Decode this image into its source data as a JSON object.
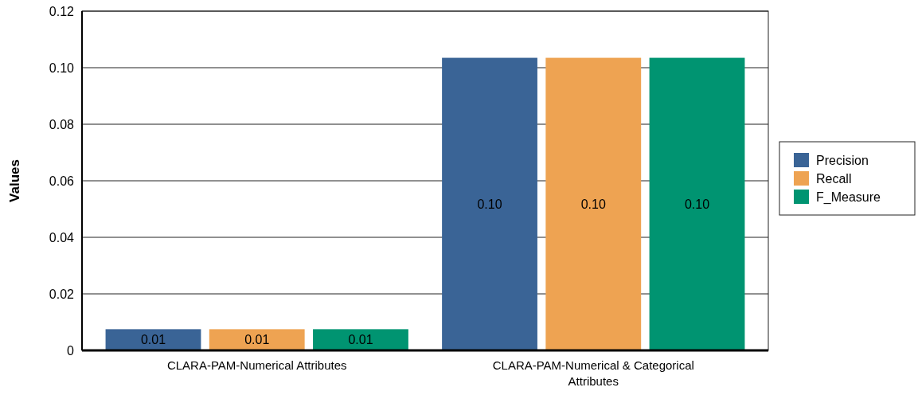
{
  "chart_data": {
    "type": "bar",
    "ylabel": "Values",
    "categories": [
      "CLARA-PAM-Numerical Attributes",
      "CLARA-PAM-Numerical & Categorical Attributes"
    ],
    "series": [
      {
        "name": "Precision",
        "color": "#3a6496",
        "values": [
          0.0075,
          0.1035
        ],
        "value_labels": [
          "0.01",
          "0.10"
        ]
      },
      {
        "name": "Recall",
        "color": "#eea352",
        "values": [
          0.0075,
          0.1035
        ],
        "value_labels": [
          "0.01",
          "0.10"
        ]
      },
      {
        "name": "F_Measure",
        "color": "#009471",
        "values": [
          0.0075,
          0.1035
        ],
        "value_labels": [
          "0.01",
          "0.10"
        ]
      }
    ],
    "ylim": [
      0,
      0.12
    ],
    "yticks": [
      {
        "value": 0,
        "label": "0"
      },
      {
        "value": 0.02,
        "label": "0.02"
      },
      {
        "value": 0.04,
        "label": "0.04"
      },
      {
        "value": 0.06,
        "label": "0.06"
      },
      {
        "value": 0.08,
        "label": "0.08"
      },
      {
        "value": 0.1,
        "label": "0.10"
      },
      {
        "value": 0.12,
        "label": "0.12"
      }
    ],
    "grid": "y",
    "legend": "right"
  }
}
